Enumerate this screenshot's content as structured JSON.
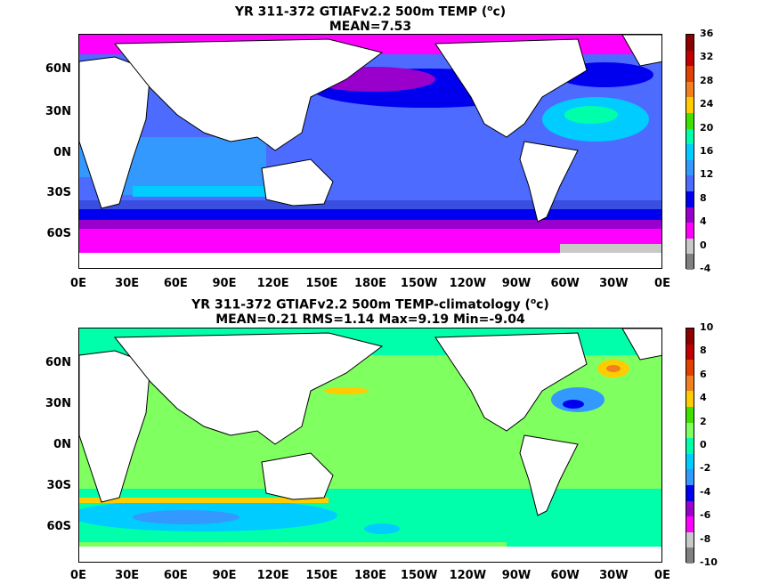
{
  "panel1": {
    "title_line1": "YR 311-372 GTIAFv2.2 500m TEMP (",
    "title_sup": "o",
    "title_unit": "c)",
    "title_line2": "MEAN=7.53",
    "colorbar": [
      "36",
      "32",
      "28",
      "24",
      "20",
      "16",
      "12",
      "8",
      "4",
      "0",
      "-4"
    ],
    "colorbar_colors": [
      "#8b0000",
      "#c00000",
      "#e04000",
      "#f08020",
      "#ffcc00",
      "#40e000",
      "#00ffaa",
      "#00ccff",
      "#3399ff",
      "#4d6bff",
      "#0000ee",
      "#9900cc",
      "#ff00ff",
      "#c8c8c8",
      "#808080"
    ]
  },
  "panel2": {
    "title_line1": "YR 311-372 GTIAFv2.2 500m TEMP-climatology (",
    "title_sup": "o",
    "title_unit": "c)",
    "title_line2": "MEAN=0.21   RMS=1.14   Max=9.19   Min=-9.04",
    "colorbar": [
      "10",
      "8",
      "6",
      "4",
      "2",
      "0",
      "-2",
      "-4",
      "-6",
      "-8",
      "-10"
    ],
    "colorbar_colors": [
      "#8b0000",
      "#c00000",
      "#e04000",
      "#f08020",
      "#ffcc00",
      "#40e000",
      "#80ff60",
      "#00ffaa",
      "#00ccff",
      "#3399ff",
      "#0000ee",
      "#9900cc",
      "#ff00ff",
      "#c8c8c8",
      "#808080"
    ]
  },
  "lat_labels": [
    "60N",
    "30N",
    "0N",
    "30S",
    "60S"
  ],
  "lon_labels": [
    "0E",
    "30E",
    "60E",
    "90E",
    "120E",
    "150E",
    "180E",
    "150W",
    "120W",
    "90W",
    "60W",
    "30W",
    "0E"
  ]
}
